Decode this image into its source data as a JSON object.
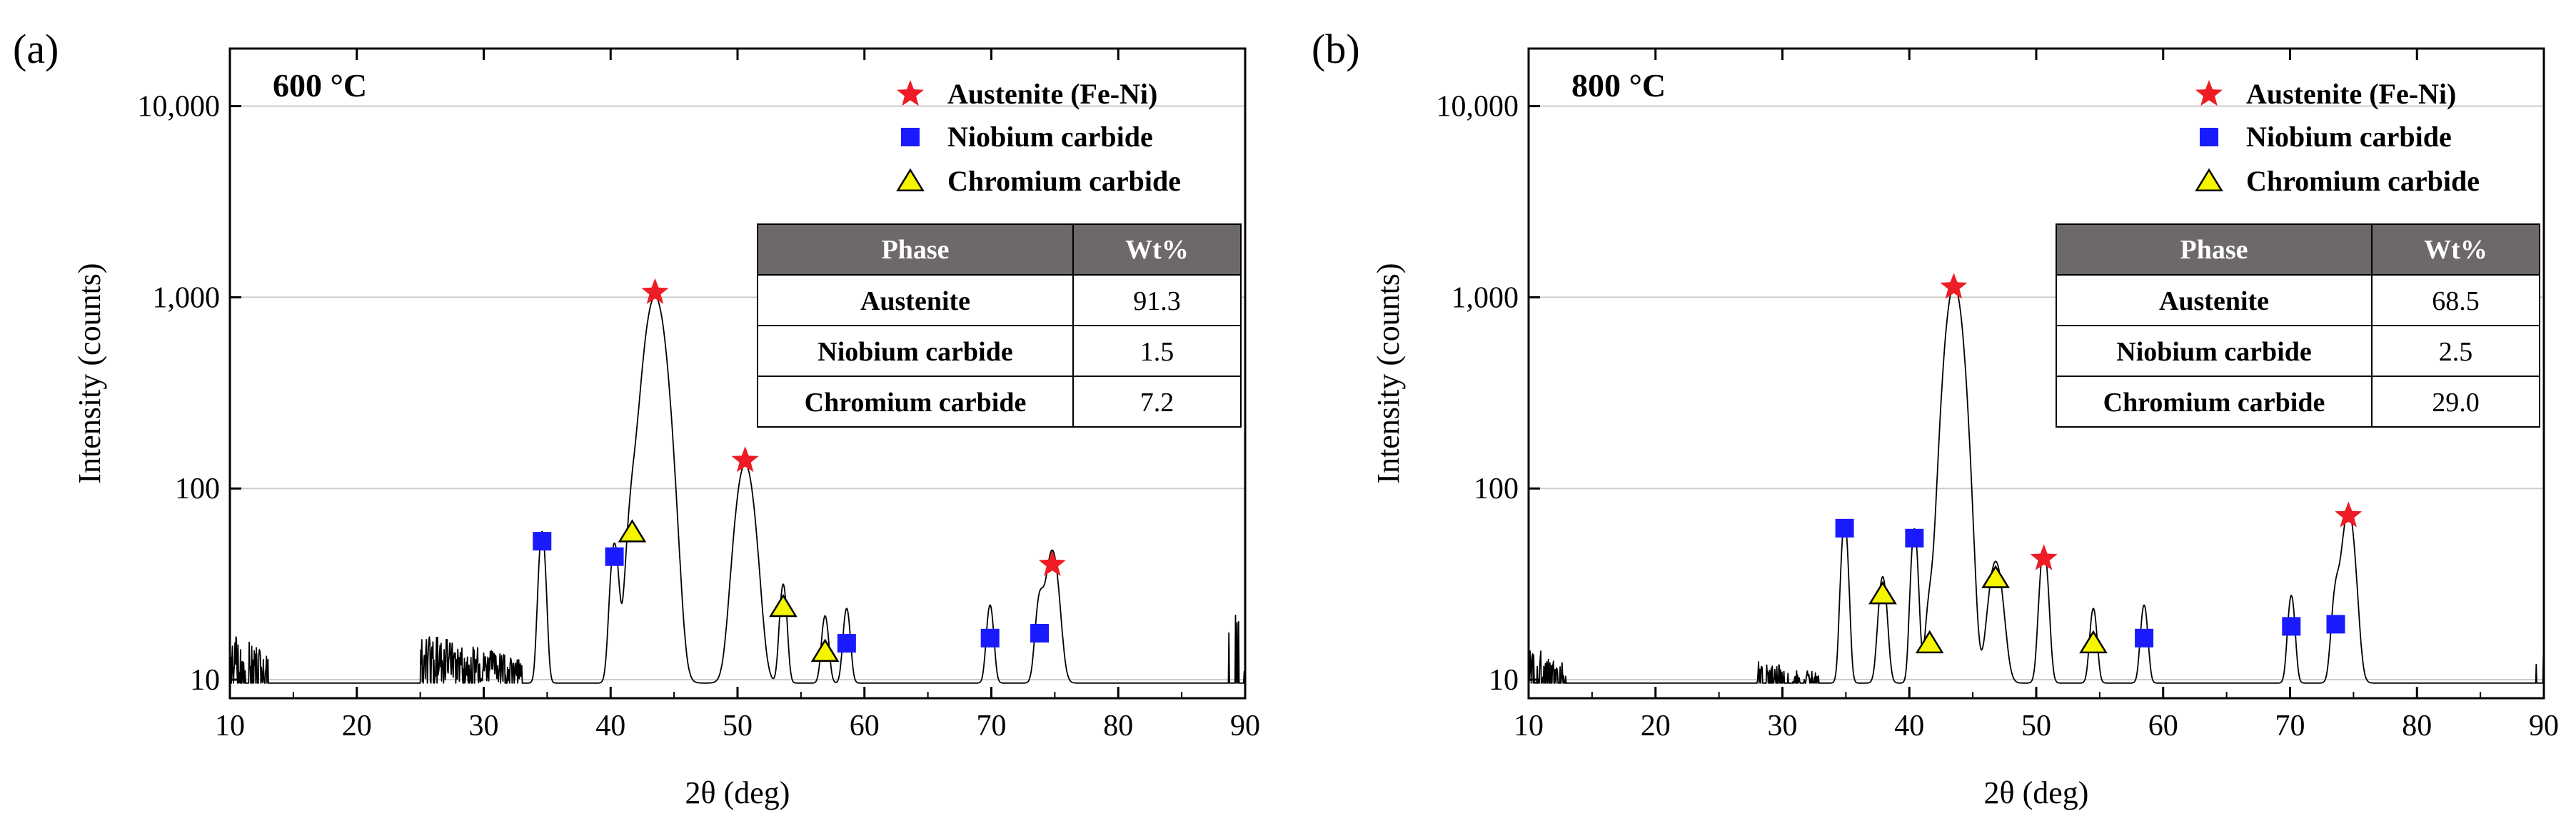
{
  "chart_data": [
    {
      "type": "line",
      "panel": "(a)",
      "title": "600 °C",
      "xlabel": "2θ (deg)",
      "ylabel": "Intensity (counts)",
      "xlim": [
        10,
        90
      ],
      "ylim": [
        8,
        20000
      ],
      "yscale": "log",
      "xticks": [
        10,
        20,
        30,
        40,
        50,
        60,
        70,
        80,
        90
      ],
      "xtick_labels": [
        "10",
        "20",
        "30",
        "40",
        "50",
        "60",
        "70",
        "80",
        "90"
      ],
      "yticks": [
        10,
        100,
        1000,
        10000
      ],
      "ytick_labels": [
        "10",
        "100",
        "1,000",
        "10,000"
      ],
      "grid": "horizontal",
      "legend": [
        "Austenite (Fe-Ni)",
        "Niobium carbide",
        "Chromium carbide"
      ],
      "table": {
        "headers": [
          "Phase",
          "Wt%"
        ],
        "rows": [
          [
            "Austenite",
            "91.3"
          ],
          [
            "Niobium carbide",
            "1.5"
          ],
          [
            "Chromium carbide",
            "7.2"
          ]
        ]
      },
      "peaks": [
        {
          "x": 34.6,
          "y": 50,
          "w": 0.25
        },
        {
          "x": 40.3,
          "y": 42,
          "w": 0.3
        },
        {
          "x": 41.7,
          "y": 55,
          "w": 0.4
        },
        {
          "x": 43.5,
          "y": 1000,
          "w": 0.75
        },
        {
          "x": 50.6,
          "y": 125,
          "w": 0.65
        },
        {
          "x": 53.6,
          "y": 22,
          "w": 0.25
        },
        {
          "x": 56.9,
          "y": 12,
          "w": 0.25
        },
        {
          "x": 58.6,
          "y": 14,
          "w": 0.25
        },
        {
          "x": 69.9,
          "y": 15,
          "w": 0.25
        },
        {
          "x": 73.8,
          "y": 16,
          "w": 0.3
        },
        {
          "x": 74.8,
          "y": 38,
          "w": 0.45
        }
      ],
      "noise": [
        [
          10,
          13,
          18,
          55
        ],
        [
          25,
          33,
          17,
          90
        ],
        [
          88.5,
          90,
          28,
          8
        ]
      ],
      "markers": [
        {
          "phase": "austenite",
          "x": 43.5,
          "y": 1060
        },
        {
          "phase": "austenite",
          "x": 50.6,
          "y": 140
        },
        {
          "phase": "austenite",
          "x": 74.8,
          "y": 40
        },
        {
          "phase": "niobium",
          "x": 34.6,
          "y": 53
        },
        {
          "phase": "niobium",
          "x": 40.3,
          "y": 44
        },
        {
          "phase": "niobium",
          "x": 58.6,
          "y": 15.5
        },
        {
          "phase": "niobium",
          "x": 69.9,
          "y": 16.5
        },
        {
          "phase": "niobium",
          "x": 73.8,
          "y": 17.5
        },
        {
          "phase": "chromium",
          "x": 41.7,
          "y": 59
        },
        {
          "phase": "chromium",
          "x": 53.6,
          "y": 24
        },
        {
          "phase": "chromium",
          "x": 56.9,
          "y": 14
        }
      ]
    },
    {
      "type": "line",
      "panel": "(b)",
      "title": "800 °C",
      "xlabel": "2θ (deg)",
      "ylabel": "Intensity (counts)",
      "xlim": [
        10,
        90
      ],
      "ylim": [
        8,
        20000
      ],
      "yscale": "log",
      "xticks": [
        10,
        20,
        30,
        40,
        50,
        60,
        70,
        80,
        90
      ],
      "xtick_labels": [
        "10",
        "20",
        "30",
        "40",
        "50",
        "60",
        "70",
        "80",
        "90"
      ],
      "yticks": [
        10,
        100,
        1000,
        10000
      ],
      "ytick_labels": [
        "10",
        "100",
        "1,000",
        "10,000"
      ],
      "grid": "horizontal",
      "legend": [
        "Austenite (Fe-Ni)",
        "Niobium carbide",
        "Chromium carbide"
      ],
      "table": {
        "headers": [
          "Phase",
          "Wt%"
        ],
        "rows": [
          [
            "Austenite",
            "68.5"
          ],
          [
            "Niobium carbide",
            "2.5"
          ],
          [
            "Chromium carbide",
            "29.0"
          ]
        ]
      },
      "peaks": [
        {
          "x": 34.9,
          "y": 58,
          "w": 0.25
        },
        {
          "x": 37.9,
          "y": 25,
          "w": 0.3
        },
        {
          "x": 40.4,
          "y": 52,
          "w": 0.25
        },
        {
          "x": 41.6,
          "y": 14,
          "w": 0.3
        },
        {
          "x": 43.5,
          "y": 1100,
          "w": 0.6
        },
        {
          "x": 44.1,
          "y": 90,
          "w": 0.5
        },
        {
          "x": 46.8,
          "y": 32,
          "w": 0.5
        },
        {
          "x": 50.6,
          "y": 40,
          "w": 0.3
        },
        {
          "x": 54.5,
          "y": 14,
          "w": 0.25
        },
        {
          "x": 58.5,
          "y": 15,
          "w": 0.25
        },
        {
          "x": 70.1,
          "y": 18,
          "w": 0.25
        },
        {
          "x": 73.6,
          "y": 18,
          "w": 0.3
        },
        {
          "x": 74.6,
          "y": 68,
          "w": 0.45
        }
      ],
      "noise": [
        [
          10,
          13,
          15,
          50
        ],
        [
          28,
          33,
          12,
          40
        ],
        [
          88.5,
          90,
          13,
          8
        ]
      ],
      "markers": [
        {
          "phase": "austenite",
          "x": 43.5,
          "y": 1130
        },
        {
          "phase": "austenite",
          "x": 50.6,
          "y": 43
        },
        {
          "phase": "austenite",
          "x": 74.6,
          "y": 72
        },
        {
          "phase": "niobium",
          "x": 34.9,
          "y": 62
        },
        {
          "phase": "niobium",
          "x": 40.4,
          "y": 55
        },
        {
          "phase": "niobium",
          "x": 58.5,
          "y": 16.5
        },
        {
          "phase": "niobium",
          "x": 70.1,
          "y": 19
        },
        {
          "phase": "niobium",
          "x": 73.6,
          "y": 19.5
        },
        {
          "phase": "chromium",
          "x": 37.9,
          "y": 28
        },
        {
          "phase": "chromium",
          "x": 41.6,
          "y": 15.5
        },
        {
          "phase": "chromium",
          "x": 46.8,
          "y": 34
        },
        {
          "phase": "chromium",
          "x": 54.5,
          "y": 15.5
        }
      ]
    }
  ],
  "colors": {
    "austenite": "#ee1c25",
    "niobium": "#1a1aff",
    "chromium": "#f5f500",
    "table_header": "#6d6869",
    "grid": "#cccccc",
    "line": "#000000"
  }
}
